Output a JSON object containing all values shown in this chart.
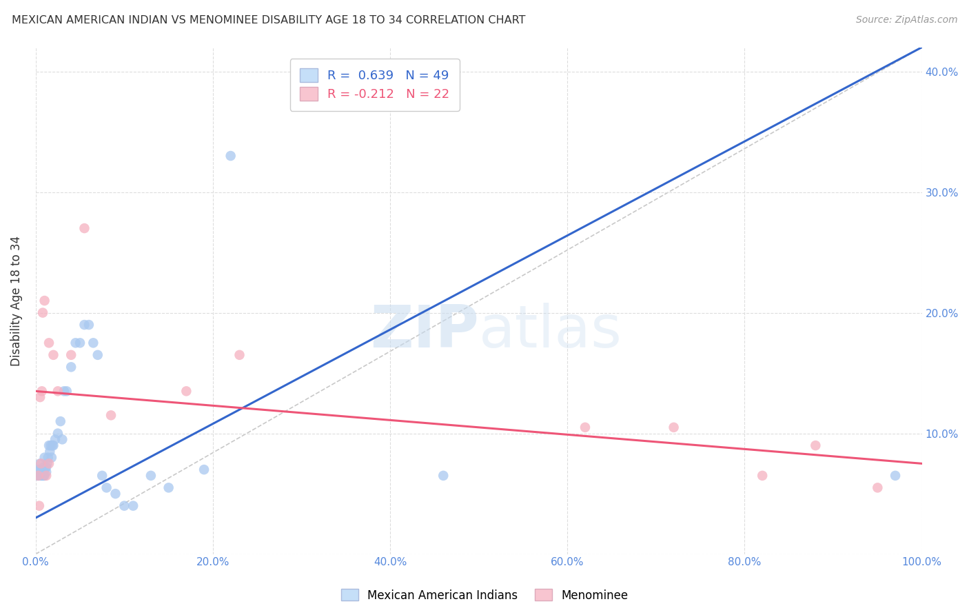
{
  "title": "MEXICAN AMERICAN INDIAN VS MENOMINEE DISABILITY AGE 18 TO 34 CORRELATION CHART",
  "source": "Source: ZipAtlas.com",
  "ylabel": "Disability Age 18 to 34",
  "watermark": "ZIPatlas",
  "xlim": [
    0.0,
    1.0
  ],
  "ylim": [
    0.0,
    0.42
  ],
  "xticks": [
    0.0,
    0.2,
    0.4,
    0.6,
    0.8,
    1.0
  ],
  "xticklabels": [
    "0.0%",
    "20.0%",
    "40.0%",
    "60.0%",
    "80.0%",
    "100.0%"
  ],
  "yticks": [
    0.0,
    0.1,
    0.2,
    0.3,
    0.4
  ],
  "yticklabels": [
    "",
    "10.0%",
    "20.0%",
    "30.0%",
    "40.0%"
  ],
  "blue_R": 0.639,
  "blue_N": 49,
  "pink_R": -0.212,
  "pink_N": 22,
  "blue_line_x0": 0.0,
  "blue_line_y0": 0.03,
  "blue_line_x1": 1.0,
  "blue_line_y1": 0.42,
  "pink_line_x0": 0.0,
  "pink_line_y0": 0.135,
  "pink_line_x1": 1.0,
  "pink_line_y1": 0.075,
  "blue_scatter_x": [
    0.002,
    0.003,
    0.004,
    0.005,
    0.005,
    0.006,
    0.007,
    0.007,
    0.008,
    0.008,
    0.009,
    0.009,
    0.01,
    0.01,
    0.01,
    0.012,
    0.012,
    0.013,
    0.014,
    0.015,
    0.016,
    0.017,
    0.018,
    0.019,
    0.02,
    0.022,
    0.025,
    0.028,
    0.03,
    0.032,
    0.035,
    0.04,
    0.045,
    0.05,
    0.055,
    0.06,
    0.065,
    0.07,
    0.075,
    0.08,
    0.09,
    0.1,
    0.11,
    0.13,
    0.15,
    0.19,
    0.22,
    0.46,
    0.97
  ],
  "blue_scatter_y": [
    0.065,
    0.07,
    0.065,
    0.07,
    0.075,
    0.065,
    0.065,
    0.07,
    0.065,
    0.07,
    0.065,
    0.072,
    0.065,
    0.07,
    0.08,
    0.068,
    0.072,
    0.075,
    0.08,
    0.09,
    0.085,
    0.09,
    0.08,
    0.09,
    0.09,
    0.095,
    0.1,
    0.11,
    0.095,
    0.135,
    0.135,
    0.155,
    0.175,
    0.175,
    0.19,
    0.19,
    0.175,
    0.165,
    0.065,
    0.055,
    0.05,
    0.04,
    0.04,
    0.065,
    0.055,
    0.07,
    0.33,
    0.065,
    0.065
  ],
  "pink_scatter_x": [
    0.003,
    0.004,
    0.005,
    0.006,
    0.007,
    0.008,
    0.01,
    0.012,
    0.015,
    0.015,
    0.02,
    0.025,
    0.04,
    0.055,
    0.085,
    0.17,
    0.23,
    0.62,
    0.72,
    0.82,
    0.88,
    0.95
  ],
  "pink_scatter_y": [
    0.065,
    0.04,
    0.13,
    0.075,
    0.135,
    0.2,
    0.21,
    0.065,
    0.175,
    0.075,
    0.165,
    0.135,
    0.165,
    0.27,
    0.115,
    0.135,
    0.165,
    0.105,
    0.105,
    0.065,
    0.09,
    0.055
  ],
  "blue_color": "#A8C8F0",
  "pink_color": "#F5B0C0",
  "blue_line_color": "#3366CC",
  "pink_line_color": "#EE5577",
  "diagonal_color": "#BBBBBB",
  "background_color": "#FFFFFF",
  "grid_color": "#DDDDDD",
  "title_color": "#333333",
  "axis_label_color": "#5588DD",
  "legend_box_blue": "#C5DFF8",
  "legend_box_pink": "#F8C5D0"
}
